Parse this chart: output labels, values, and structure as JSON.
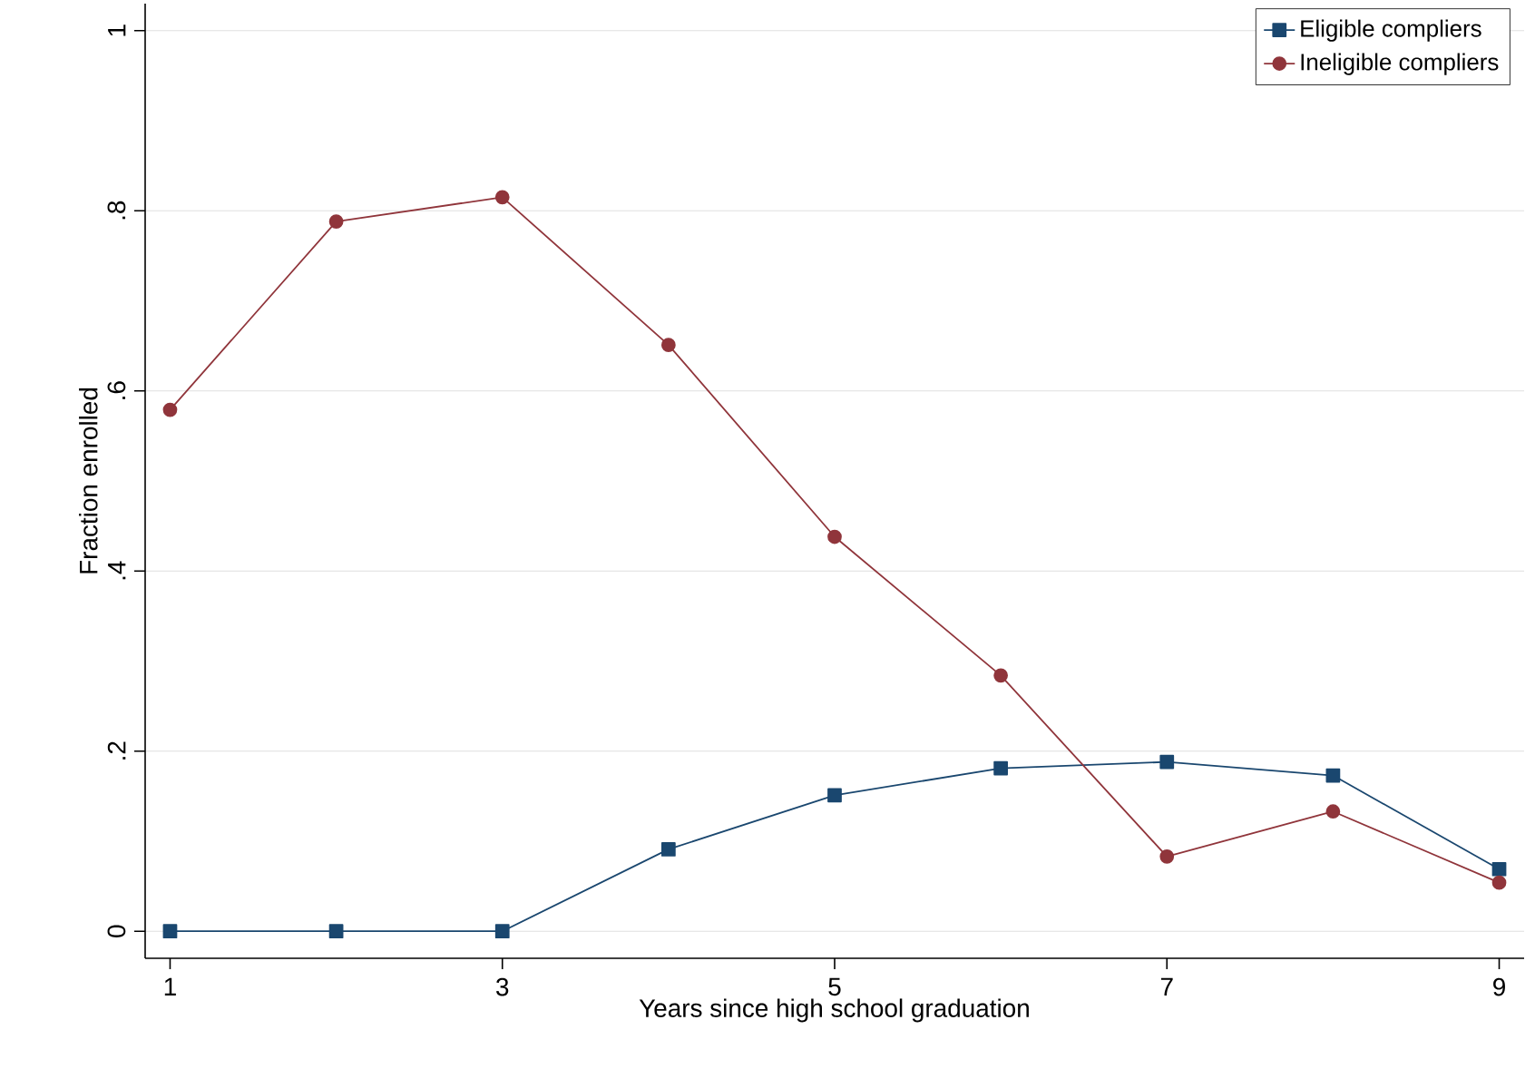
{
  "chart_data": {
    "type": "line",
    "xlabel": "Years since high school graduation",
    "ylabel": "Fraction enrolled",
    "x": [
      1,
      2,
      3,
      4,
      5,
      6,
      7,
      8,
      9
    ],
    "series": [
      {
        "name": "Eligible compliers",
        "color": "#1a476f",
        "marker": "square",
        "values": [
          0,
          0,
          0,
          0.091,
          0.151,
          0.181,
          0.188,
          0.173,
          0.069
        ]
      },
      {
        "name": "Ineligible compliers",
        "color": "#90353b",
        "marker": "circle",
        "values": [
          0.579,
          0.788,
          0.815,
          0.651,
          0.438,
          0.284,
          0.083,
          0.133,
          0.054
        ]
      }
    ],
    "xlim": [
      0.85,
      9.15
    ],
    "ylim": [
      -0.03,
      1.03
    ],
    "xticks": [
      1,
      3,
      5,
      7,
      9
    ],
    "yticks": [
      0,
      {
        "value": 0.2,
        "label": ".2"
      },
      {
        "value": 0.4,
        "label": ".4"
      },
      {
        "value": 0.6,
        "label": ".6"
      },
      {
        "value": 0.8,
        "label": ".8"
      },
      1
    ],
    "grid": "y",
    "legend": "top right",
    "line_style": "solid"
  }
}
